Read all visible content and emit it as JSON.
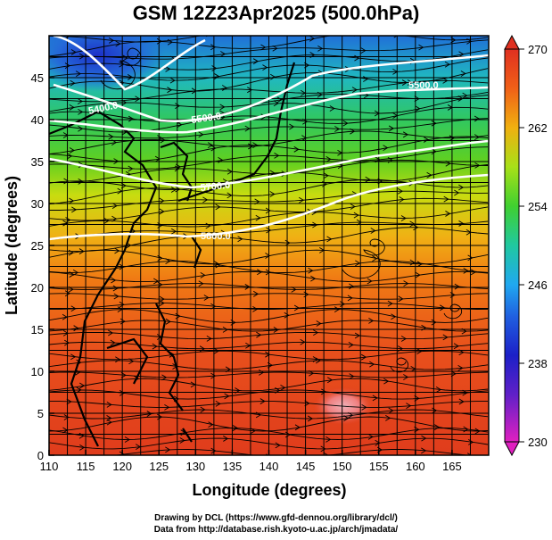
{
  "title": "GSM 12Z23Apr2025 (500.0hPa)",
  "x_axis": {
    "label": "Longitude (degrees)",
    "ticks": [
      "110",
      "115",
      "120",
      "125",
      "130",
      "135",
      "140",
      "145",
      "150",
      "155",
      "160",
      "165"
    ],
    "range": [
      110,
      170
    ]
  },
  "y_axis": {
    "label": "Latitude  (degrees)",
    "ticks": [
      "0",
      "5",
      "10",
      "15",
      "20",
      "25",
      "30",
      "35",
      "40",
      "45"
    ],
    "range": [
      0,
      50
    ]
  },
  "colorbar": {
    "ticks": [
      "230",
      "238",
      "246",
      "254",
      "262",
      "270"
    ],
    "range": [
      230,
      270
    ],
    "colors": [
      "#e020c0",
      "#2020d0",
      "#20a0f0",
      "#30c070",
      "#40d020",
      "#c0e010",
      "#f0a010",
      "#f05010",
      "#e03020"
    ]
  },
  "contours": [
    {
      "label": "5400.0"
    },
    {
      "label": "5500.0"
    },
    {
      "label": "5600.0"
    },
    {
      "label": "5700.0"
    },
    {
      "label": "5800.0"
    }
  ],
  "credits": {
    "line1": "Drawing by DCL (https://www.gfd-dennou.org/library/dcl/)",
    "line2": "Data from http://database.rish.kyoto-u.ac.jp/arch/jmadata/"
  }
}
